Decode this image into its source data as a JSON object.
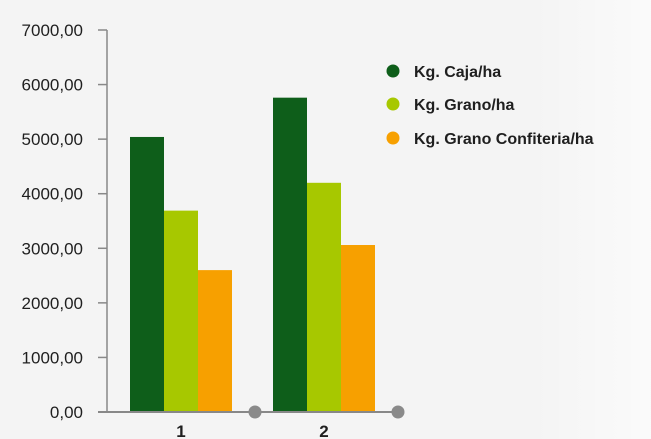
{
  "chart_data": {
    "type": "bar",
    "categories": [
      "1",
      "2"
    ],
    "series": [
      {
        "name": "Kg. Caja/ha",
        "color": "#0e5e1a",
        "values": [
          5040,
          5760
        ]
      },
      {
        "name": "Kg. Grano/ha",
        "color": "#a7c800",
        "values": [
          3690,
          4200
        ]
      },
      {
        "name": "Kg. Grano Confiteria/ha",
        "color": "#f7a000",
        "values": [
          2600,
          3060
        ]
      }
    ],
    "ylim": [
      0,
      7000
    ],
    "yticks": [
      "0,00",
      "1000,00",
      "2000,00",
      "3000,00",
      "4000,00",
      "5000,00",
      "6000,00",
      "7000,00"
    ],
    "title": "",
    "xlabel": "",
    "ylabel": "",
    "legend_position": "top-right",
    "grid": false,
    "colors": {
      "axis": "#888888",
      "axis_end_marker": "#8a8a8a",
      "text": "#1f1f1f",
      "background": "#f4f4f4"
    }
  }
}
